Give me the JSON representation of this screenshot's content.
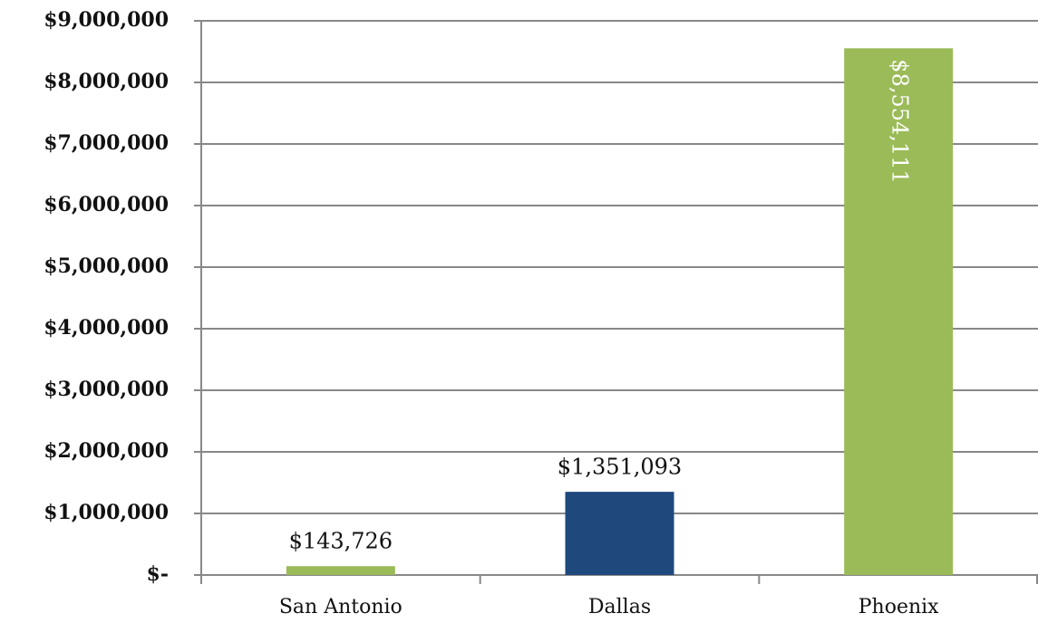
{
  "chart_data": {
    "type": "bar",
    "categories": [
      "San Antonio",
      "Dallas",
      "Phoenix"
    ],
    "values": [
      143726,
      1351093,
      8554111
    ],
    "value_labels": [
      "$143,726",
      "$1,351,093",
      "$8,554,111"
    ],
    "colors": [
      "#9bbb59",
      "#1f497d",
      "#9bbb59"
    ],
    "ylim": [
      0,
      9000000
    ],
    "yticks": [
      {
        "value": 0,
        "label": "$-"
      },
      {
        "value": 1000000,
        "label": "$1,000,000"
      },
      {
        "value": 2000000,
        "label": "$2,000,000"
      },
      {
        "value": 3000000,
        "label": "$3,000,000"
      },
      {
        "value": 4000000,
        "label": "$4,000,000"
      },
      {
        "value": 5000000,
        "label": "$5,000,000"
      },
      {
        "value": 6000000,
        "label": "$6,000,000"
      },
      {
        "value": 7000000,
        "label": "$7,000,000"
      },
      {
        "value": 8000000,
        "label": "$8,000,000"
      },
      {
        "value": 9000000,
        "label": "$9,000,000"
      }
    ],
    "grid": true
  }
}
